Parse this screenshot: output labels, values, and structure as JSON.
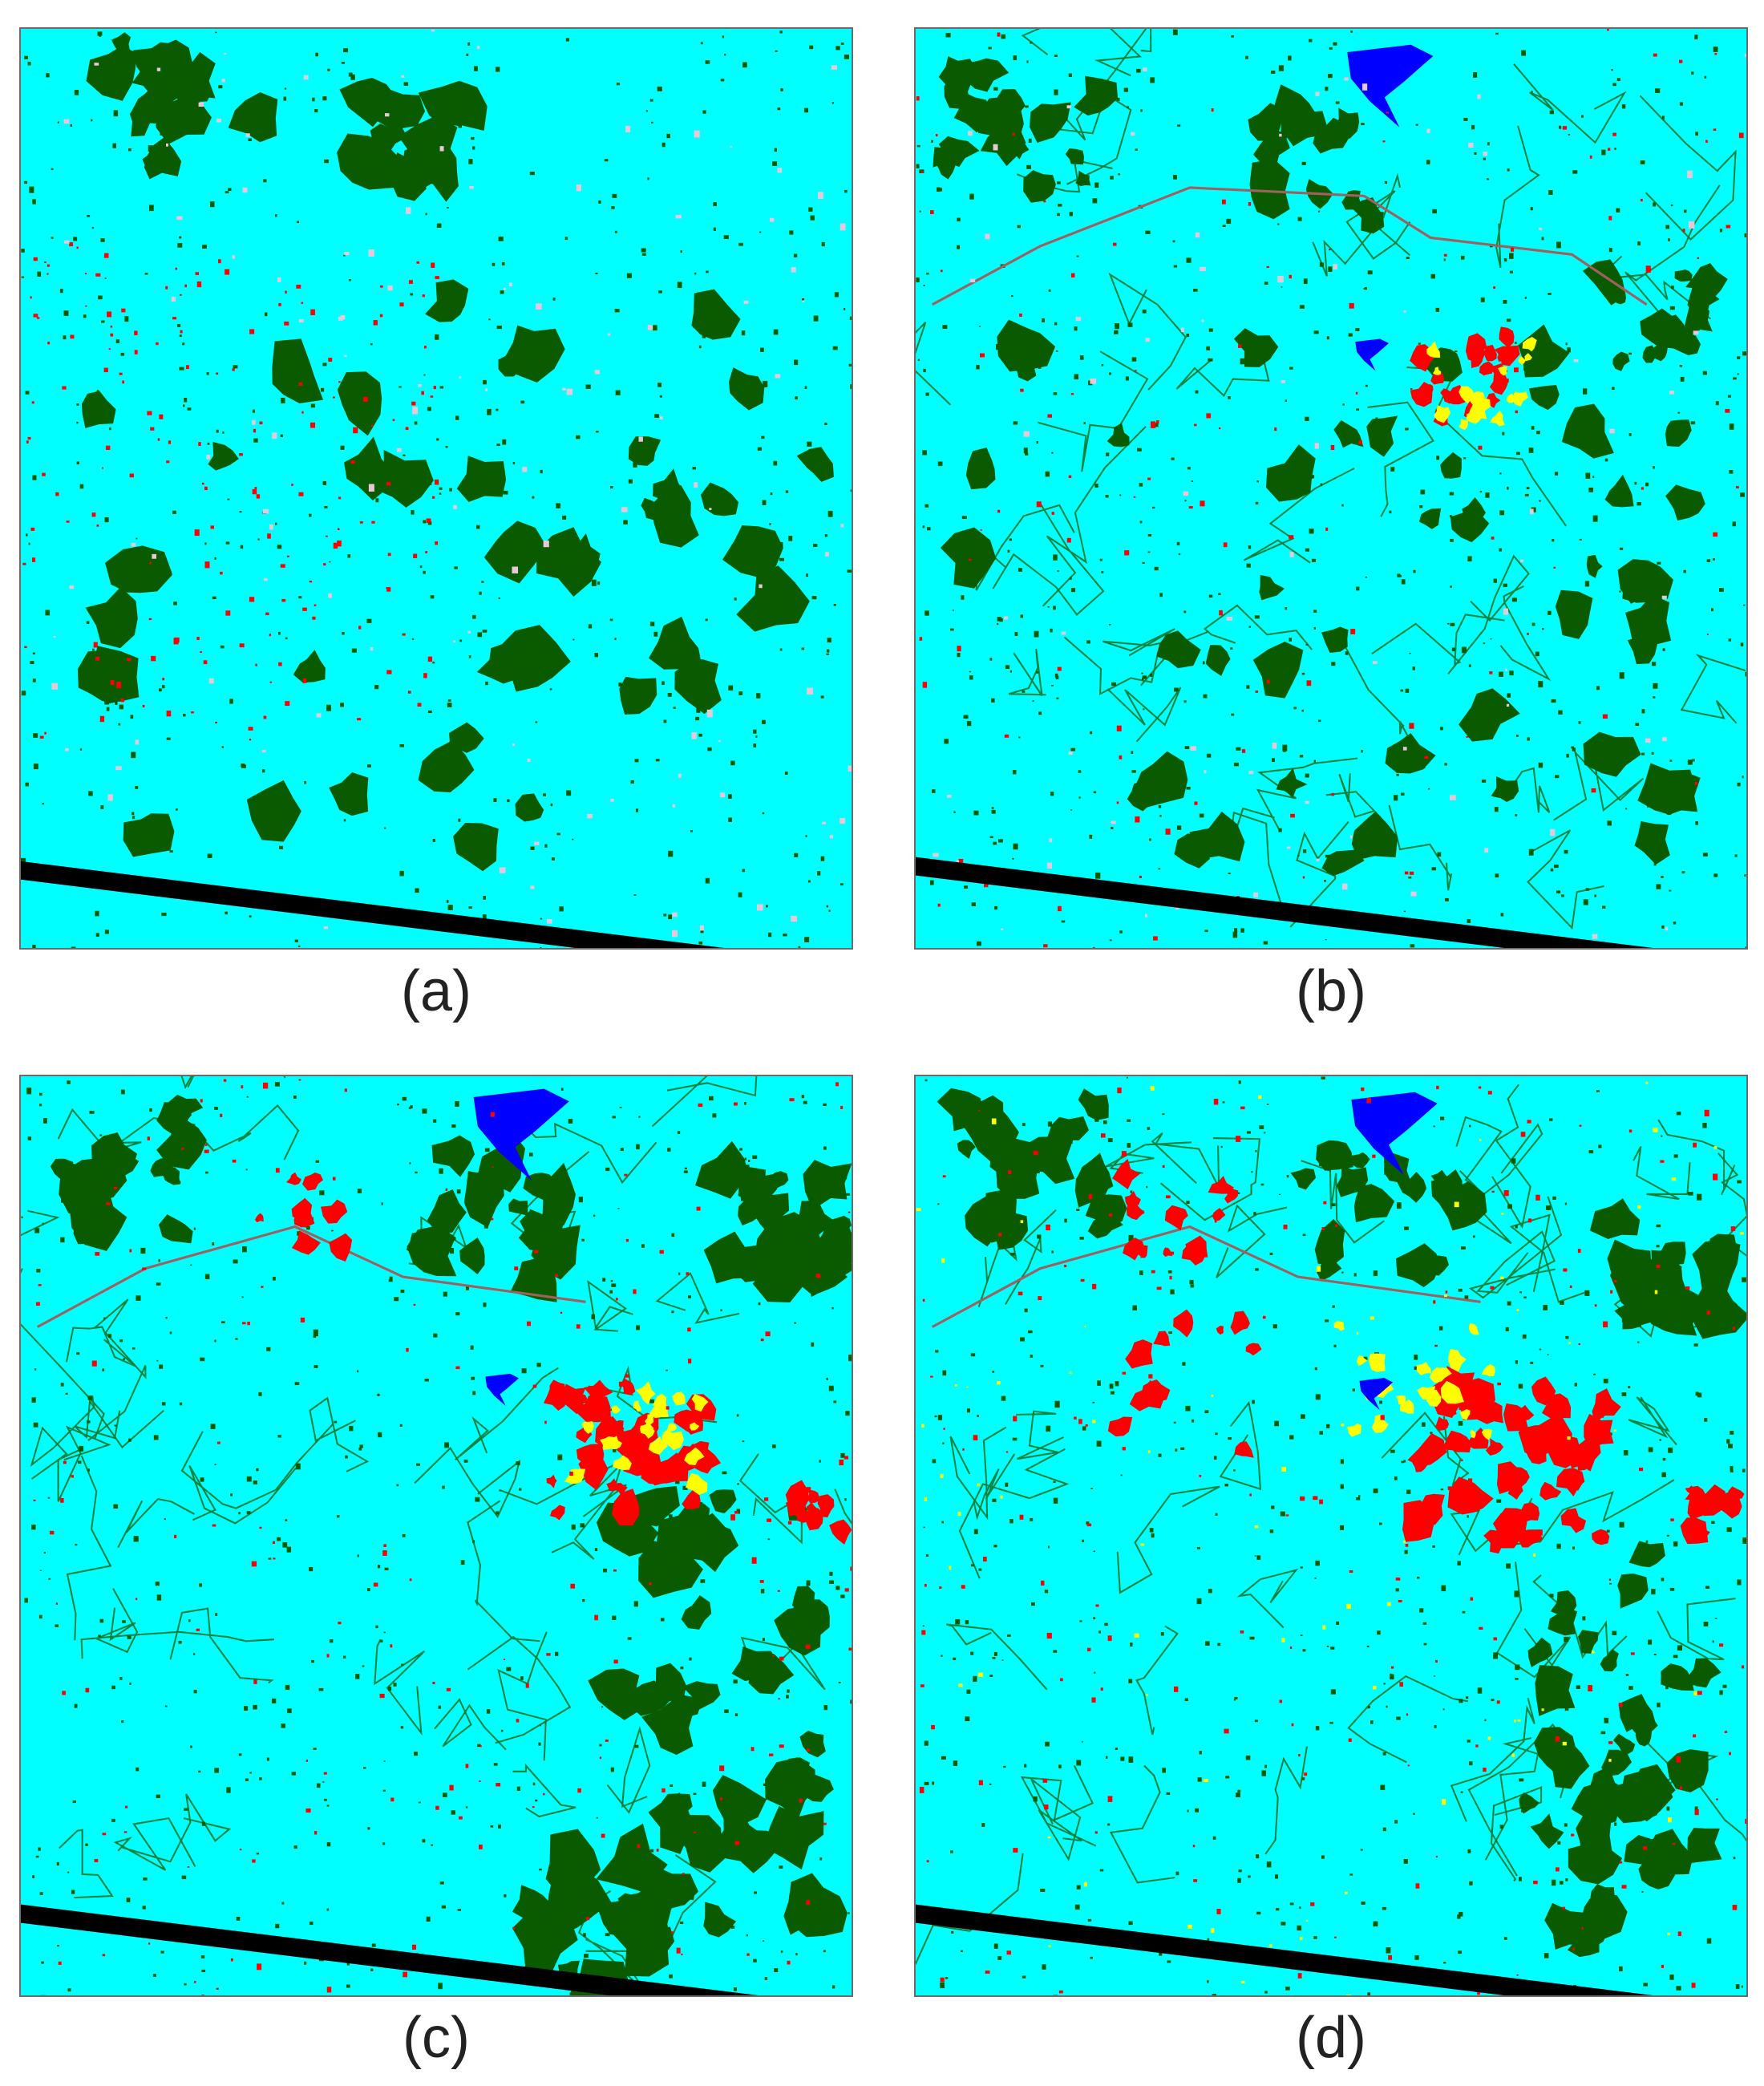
{
  "colors": {
    "agriculture": "#00ffff",
    "vegetation": "#0a5a00",
    "water": "#0000ff",
    "built_up": "#ff0000",
    "bare_land": "#ffff00",
    "other": "#e8c8d8",
    "no_data": "#000000"
  },
  "panels": [
    {
      "label": "(a)"
    },
    {
      "label": "(b)"
    },
    {
      "label": "(c)"
    },
    {
      "label": "(d)"
    }
  ]
}
